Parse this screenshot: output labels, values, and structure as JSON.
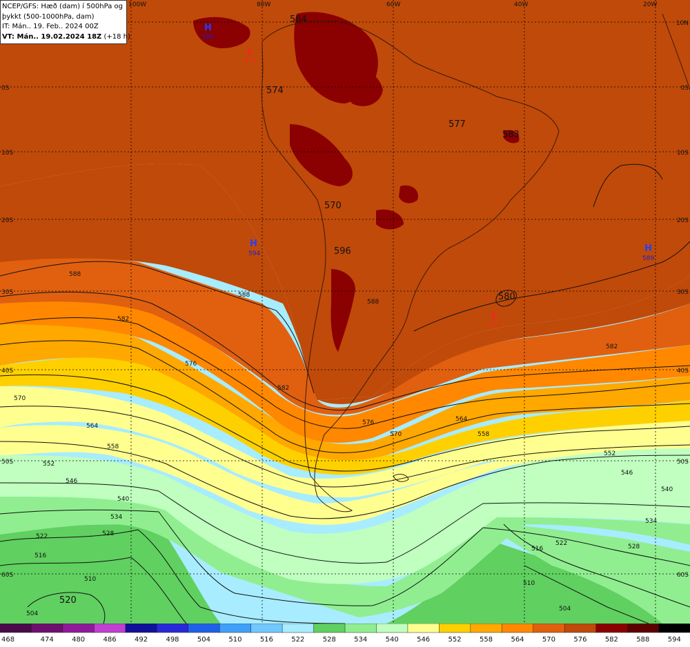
{
  "info": {
    "line1": "NCEP/GFS: Hæð (dam) í 500hPa og",
    "line2": "þykkt (500-1000hPa, dam)",
    "line3": "IT: Mán.. 19. Feb.. 2024 00Z",
    "line4": "VT: Mán.. 19.02.2024 18Z",
    "line4_suffix": "(+18 h)"
  },
  "lon_labels": [
    "100W",
    "80W",
    "60W",
    "40W",
    "20W"
  ],
  "lat_labels": [
    "10N",
    "0S",
    "10S",
    "20S",
    "30S",
    "40S",
    "50S",
    "60S"
  ],
  "pressure_labels": [
    {
      "text": "H",
      "color": "#2040ff",
      "value": "594",
      "value_color": "#2020c0"
    },
    {
      "text": "H",
      "color": "#2040ff",
      "value": "594",
      "value_color": "#2020c0"
    },
    {
      "text": "H",
      "color": "#2040ff",
      "value": "589",
      "value_color": "#2020c0"
    },
    {
      "text": "L",
      "color": "#ff2020",
      "value": "573",
      "value_color": "#ff2020"
    },
    {
      "text": "L",
      "color": "#ff2020",
      "value": "573",
      "value_color": "#ff2020"
    }
  ],
  "height_labels": [
    "584",
    "574",
    "577",
    "583",
    "570",
    "596",
    "580",
    "520"
  ],
  "contour_labels": [
    "588",
    "582",
    "576",
    "570",
    "564",
    "558",
    "552",
    "546",
    "540",
    "534",
    "528",
    "522",
    "516",
    "510",
    "504",
    "588",
    "582",
    "576",
    "570",
    "564",
    "558",
    "552",
    "546",
    "540",
    "534",
    "528",
    "522",
    "516",
    "510",
    "504",
    "588",
    "582"
  ],
  "legend": {
    "values": [
      "468",
      "474",
      "480",
      "486",
      "492",
      "498",
      "504",
      "510",
      "516",
      "522",
      "528",
      "534",
      "540",
      "546",
      "552",
      "558",
      "564",
      "570",
      "576",
      "582",
      "588",
      "594"
    ],
    "colors": [
      "#4b0a4b",
      "#6e0f6e",
      "#8f1b99",
      "#c040d0",
      "#10109a",
      "#2828d8",
      "#2060e8",
      "#40a0f8",
      "#70c8ff",
      "#a8ecff",
      "#60d060",
      "#90ee90",
      "#c0ffc0",
      "#ffff90",
      "#ffd000",
      "#ffa800",
      "#ff8800",
      "#e06010",
      "#c04a0a",
      "#8b0000",
      "#5c0000",
      "#000000"
    ]
  }
}
